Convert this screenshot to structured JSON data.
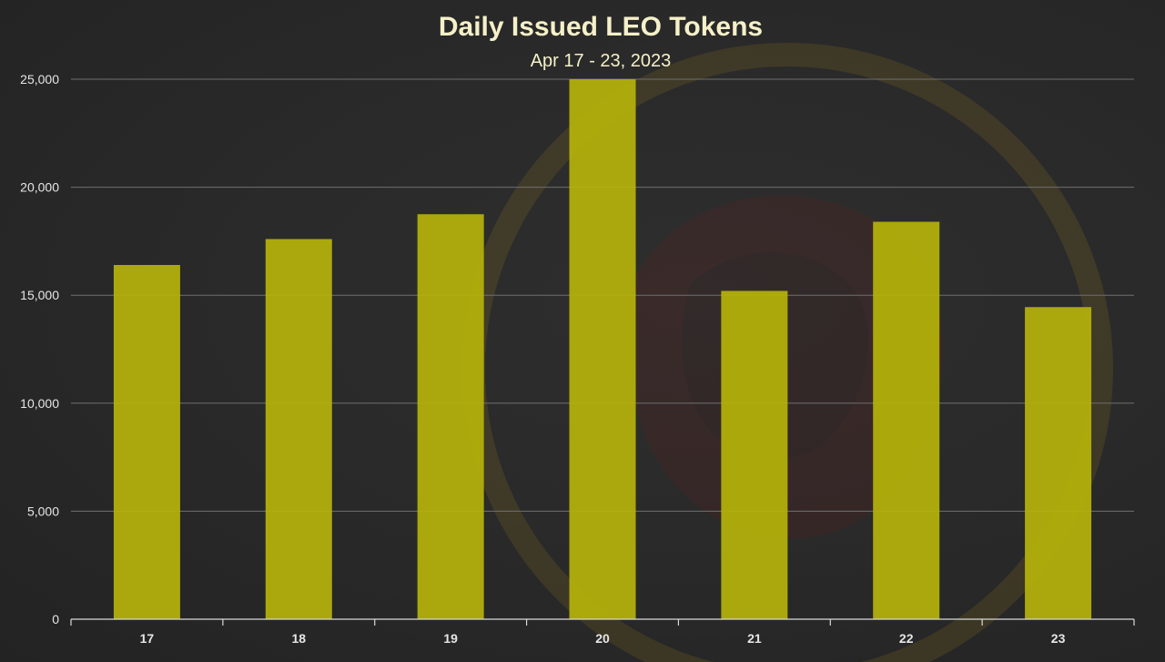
{
  "chart_data": {
    "type": "bar",
    "title": "Daily Issued LEO Tokens",
    "subtitle": "Apr 17 - 23, 2023",
    "categories": [
      "17",
      "18",
      "19",
      "20",
      "21",
      "22",
      "23"
    ],
    "values": [
      16400,
      17600,
      18750,
      25000,
      15200,
      18400,
      14450
    ],
    "yticks": [
      "0",
      "5,000",
      "10,000",
      "15,000",
      "20,000",
      "25,000"
    ],
    "ylim": [
      0,
      25000
    ],
    "xlabel": "",
    "ylabel": "",
    "grid": true,
    "bar_color": "#b5b30a",
    "background_color": "#2a2a2a"
  }
}
